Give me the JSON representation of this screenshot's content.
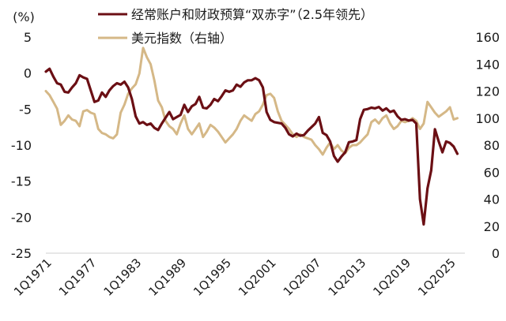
{
  "chart_data": {
    "type": "line",
    "y_unit_left": "(%)",
    "ylim_left": [
      -25,
      5
    ],
    "yticks_left": [
      "5",
      "0",
      "-5",
      "-10",
      "-15",
      "-20",
      "-25"
    ],
    "ylim_right": [
      0,
      160
    ],
    "yticks_right": [
      "160",
      "140",
      "120",
      "100",
      "80",
      "60",
      "40",
      "20",
      "0"
    ],
    "x_range": [
      1971.0,
      2027.0
    ],
    "xtick_labels": [
      {
        "label": "1Q1971",
        "x": 1971.0
      },
      {
        "label": "1Q1977",
        "x": 1977.0
      },
      {
        "label": "1Q1983",
        "x": 1983.0
      },
      {
        "label": "1Q1989",
        "x": 1989.0
      },
      {
        "label": "1Q1995",
        "x": 1995.0
      },
      {
        "label": "1Q2001",
        "x": 2001.0
      },
      {
        "label": "1Q2007",
        "x": 2007.0
      },
      {
        "label": "1Q2013",
        "x": 2013.0
      },
      {
        "label": "1Q2019",
        "x": 2019.0
      },
      {
        "label": "1Q2025",
        "x": 2025.0
      }
    ],
    "legend_position": "top",
    "series": [
      {
        "name": "经常账户和财政预算“双赤字”（2.5年领先）",
        "color": "#6b0f14",
        "axis": "left",
        "x": [
          1971.0,
          1971.5,
          1972.0,
          1972.5,
          1973.0,
          1973.5,
          1974.0,
          1974.5,
          1975.0,
          1975.5,
          1976.0,
          1976.5,
          1977.0,
          1977.5,
          1978.0,
          1978.5,
          1979.0,
          1979.5,
          1980.0,
          1980.5,
          1981.0,
          1981.5,
          1982.0,
          1982.5,
          1983.0,
          1983.5,
          1984.0,
          1984.5,
          1985.0,
          1985.5,
          1986.0,
          1986.5,
          1987.0,
          1987.5,
          1988.0,
          1988.5,
          1989.0,
          1989.5,
          1990.0,
          1990.5,
          1991.0,
          1991.5,
          1992.0,
          1992.5,
          1993.0,
          1993.5,
          1994.0,
          1994.5,
          1995.0,
          1995.5,
          1996.0,
          1996.5,
          1997.0,
          1997.5,
          1998.0,
          1998.5,
          1999.0,
          1999.5,
          2000.0,
          2000.5,
          2001.0,
          2001.5,
          2002.0,
          2002.5,
          2003.0,
          2003.5,
          2004.0,
          2004.5,
          2005.0,
          2005.5,
          2006.0,
          2006.5,
          2007.0,
          2007.5,
          2008.0,
          2008.5,
          2009.0,
          2009.5,
          2010.0,
          2010.5,
          2011.0,
          2011.5,
          2012.0,
          2012.5,
          2013.0,
          2013.5,
          2014.0,
          2014.5,
          2015.0,
          2015.5,
          2016.0,
          2016.5,
          2017.0,
          2017.5,
          2018.0,
          2018.5,
          2019.0,
          2019.5,
          2020.0,
          2020.5,
          2021.0,
          2021.5,
          2022.0,
          2022.5,
          2023.0,
          2023.5,
          2024.0,
          2024.5,
          2025.0,
          2025.5,
          2026.0
        ],
        "values": [
          0.2,
          0.6,
          -0.5,
          -1.4,
          -1.6,
          -2.6,
          -2.7,
          -2.0,
          -1.4,
          -0.3,
          -0.6,
          -0.8,
          -2.4,
          -4.0,
          -3.8,
          -2.7,
          -3.3,
          -2.4,
          -1.8,
          -1.4,
          -1.6,
          -1.2,
          -2.0,
          -3.6,
          -6.0,
          -7.0,
          -6.8,
          -7.2,
          -7.0,
          -7.6,
          -7.9,
          -7.0,
          -6.2,
          -5.4,
          -6.4,
          -6.1,
          -5.8,
          -4.4,
          -5.4,
          -4.6,
          -4.3,
          -3.3,
          -4.8,
          -4.9,
          -4.4,
          -3.6,
          -3.9,
          -3.2,
          -2.4,
          -2.6,
          -2.4,
          -1.6,
          -1.9,
          -1.3,
          -1.0,
          -1.0,
          -0.7,
          -1.0,
          -2.0,
          -5.4,
          -6.5,
          -6.8,
          -6.9,
          -7.0,
          -7.6,
          -8.5,
          -8.8,
          -8.4,
          -8.7,
          -8.6,
          -8.0,
          -7.5,
          -7.0,
          -6.1,
          -8.3,
          -8.6,
          -9.5,
          -11.5,
          -12.3,
          -11.6,
          -11.0,
          -9.6,
          -9.5,
          -9.3,
          -6.4,
          -5.1,
          -5.0,
          -4.8,
          -4.9,
          -4.7,
          -5.2,
          -4.9,
          -5.4,
          -5.2,
          -6.0,
          -6.5,
          -6.4,
          -6.6,
          -6.5,
          -7.0,
          -17.5,
          -21.0,
          -16.0,
          -13.5,
          -7.8,
          -9.5,
          -11.0,
          -9.5,
          -9.7,
          -10.2,
          -11.2
        ]
      },
      {
        "name": "美元指数（右轴）",
        "color": "#d5b887",
        "axis": "right",
        "x": [
          1971.0,
          1971.5,
          1972.0,
          1972.5,
          1973.0,
          1973.5,
          1974.0,
          1974.5,
          1975.0,
          1975.5,
          1976.0,
          1976.5,
          1977.0,
          1977.5,
          1978.0,
          1978.5,
          1979.0,
          1979.5,
          1980.0,
          1980.5,
          1981.0,
          1981.5,
          1982.0,
          1982.5,
          1983.0,
          1983.5,
          1984.0,
          1984.5,
          1985.0,
          1985.5,
          1986.0,
          1986.5,
          1987.0,
          1987.5,
          1988.0,
          1988.5,
          1989.0,
          1989.5,
          1990.0,
          1990.5,
          1991.0,
          1991.5,
          1992.0,
          1992.5,
          1993.0,
          1993.5,
          1994.0,
          1994.5,
          1995.0,
          1995.5,
          1996.0,
          1996.5,
          1997.0,
          1997.5,
          1998.0,
          1998.5,
          1999.0,
          1999.5,
          2000.0,
          2000.5,
          2001.0,
          2001.5,
          2002.0,
          2002.5,
          2003.0,
          2003.5,
          2004.0,
          2004.5,
          2005.0,
          2005.5,
          2006.0,
          2006.5,
          2007.0,
          2007.5,
          2008.0,
          2008.5,
          2009.0,
          2009.5,
          2010.0,
          2010.5,
          2011.0,
          2011.5,
          2012.0,
          2012.5,
          2013.0,
          2013.5,
          2014.0,
          2014.5,
          2015.0,
          2015.5,
          2016.0,
          2016.5,
          2017.0,
          2017.5,
          2018.0,
          2018.5,
          2019.0,
          2019.5,
          2020.0,
          2020.5,
          2021.0,
          2021.5,
          2022.0,
          2022.5,
          2023.0,
          2023.5,
          2024.0,
          2024.5,
          2025.0,
          2025.5,
          2026.0
        ],
        "values": [
          120,
          117,
          112,
          107,
          95,
          98,
          102,
          99,
          98,
          94,
          105,
          106,
          104,
          103,
          92,
          89,
          88,
          86,
          85,
          88,
          104,
          110,
          118,
          122,
          125,
          133,
          152,
          145,
          140,
          128,
          113,
          108,
          98,
          94,
          92,
          88,
          96,
          102,
          92,
          88,
          92,
          96,
          86,
          90,
          95,
          93,
          90,
          86,
          82,
          85,
          88,
          92,
          98,
          102,
          100,
          98,
          103,
          105,
          110,
          117,
          118,
          115,
          105,
          98,
          95,
          92,
          88,
          86,
          88,
          86,
          85,
          84,
          80,
          77,
          73,
          78,
          82,
          77,
          80,
          76,
          74,
          78,
          80,
          80,
          82,
          85,
          88,
          97,
          99,
          96,
          100,
          102,
          96,
          92,
          94,
          98,
          97,
          98,
          100,
          98,
          92,
          96,
          112,
          108,
          104,
          101,
          103,
          105,
          108,
          99,
          100
        ]
      }
    ]
  }
}
